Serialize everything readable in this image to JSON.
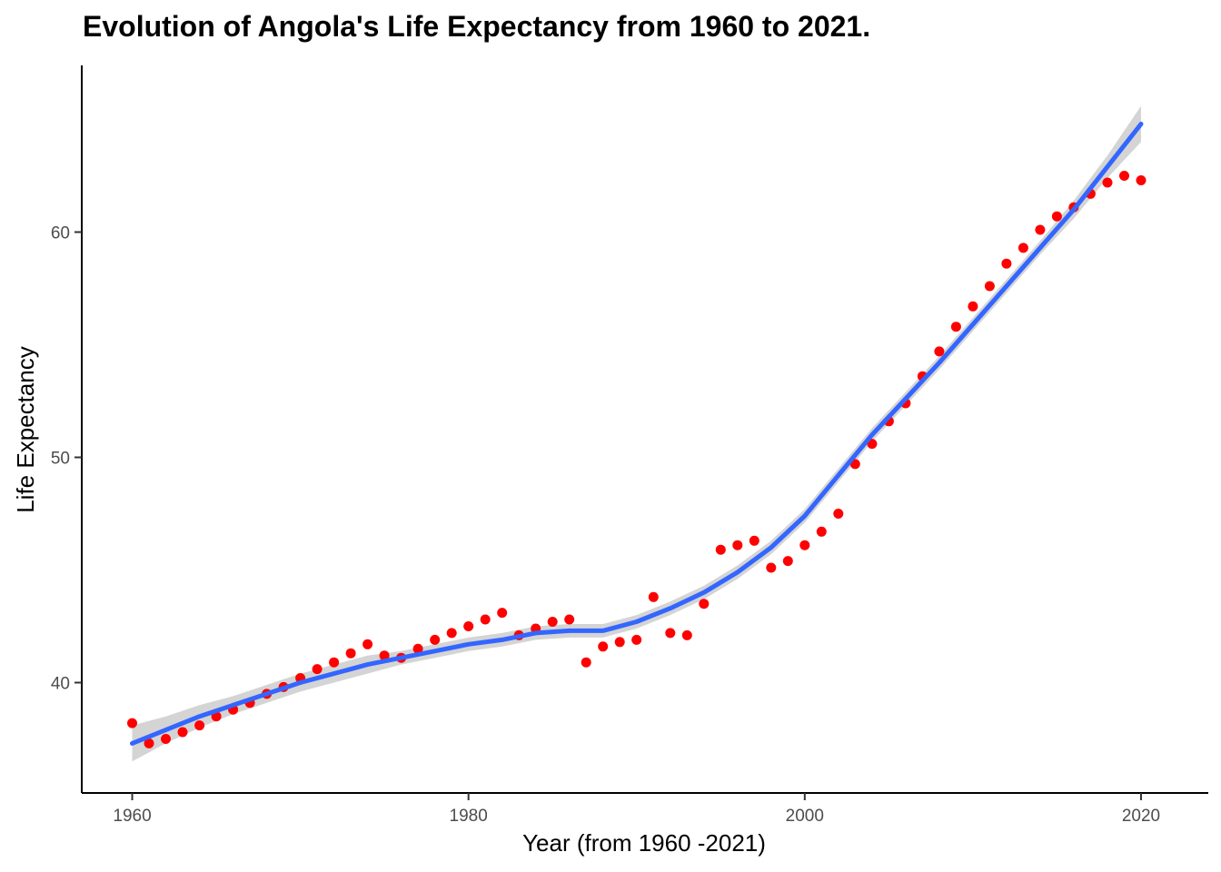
{
  "chart_data": {
    "type": "scatter",
    "title": "Evolution of Angola's Life Expectancy from 1960 to 2021.",
    "xlabel": "Year (from 1960 -2021)",
    "ylabel": "Life Expectancy",
    "xlim": [
      1957,
      2024
    ],
    "ylim": [
      35.1,
      67.4
    ],
    "x_ticks": [
      1960,
      1980,
      2000,
      2020
    ],
    "y_ticks": [
      40,
      50,
      60
    ],
    "grid": false,
    "colors": {
      "points": "#ff0000",
      "smooth": "#3366ff",
      "band": "#cccccc"
    },
    "points": {
      "x": [
        1960,
        1961,
        1962,
        1963,
        1964,
        1965,
        1966,
        1967,
        1968,
        1969,
        1970,
        1971,
        1972,
        1973,
        1974,
        1975,
        1976,
        1977,
        1978,
        1979,
        1980,
        1981,
        1982,
        1983,
        1984,
        1985,
        1986,
        1987,
        1988,
        1989,
        1990,
        1991,
        1992,
        1993,
        1994,
        1995,
        1996,
        1997,
        1998,
        1999,
        2000,
        2001,
        2002,
        2003,
        2004,
        2005,
        2006,
        2007,
        2008,
        2009,
        2010,
        2011,
        2012,
        2013,
        2014,
        2015,
        2016,
        2017,
        2018,
        2019,
        2020
      ],
      "y": [
        38.2,
        37.3,
        37.5,
        37.8,
        38.1,
        38.5,
        38.8,
        39.1,
        39.5,
        39.8,
        40.2,
        40.6,
        40.9,
        41.3,
        41.7,
        41.2,
        41.1,
        41.5,
        41.9,
        42.2,
        42.5,
        42.8,
        43.1,
        42.1,
        42.4,
        42.7,
        42.8,
        40.9,
        41.6,
        41.8,
        41.9,
        43.8,
        42.2,
        42.1,
        43.5,
        45.9,
        46.1,
        46.3,
        45.1,
        45.4,
        46.1,
        46.7,
        47.5,
        49.7,
        50.6,
        51.6,
        52.4,
        53.6,
        54.7,
        55.8,
        56.7,
        57.6,
        58.6,
        59.3,
        60.1,
        60.7,
        61.1,
        61.7,
        62.2,
        62.5,
        62.3
      ]
    },
    "smooth": {
      "x": [
        1960,
        1962,
        1964,
        1966,
        1968,
        1970,
        1972,
        1974,
        1976,
        1978,
        1980,
        1982,
        1984,
        1986,
        1988,
        1990,
        1992,
        1994,
        1996,
        1998,
        2000,
        2002,
        2004,
        2006,
        2008,
        2010,
        2012,
        2014,
        2016,
        2018,
        2020
      ],
      "y": [
        37.3,
        37.9,
        38.5,
        39.0,
        39.5,
        40.0,
        40.4,
        40.8,
        41.1,
        41.4,
        41.7,
        41.9,
        42.2,
        42.3,
        42.3,
        42.7,
        43.3,
        44.0,
        44.9,
        46.0,
        47.4,
        49.2,
        51.0,
        52.6,
        54.2,
        55.9,
        57.6,
        59.3,
        61.0,
        62.9,
        64.8
      ],
      "lower": [
        36.5,
        37.3,
        38.0,
        38.6,
        39.1,
        39.6,
        40.0,
        40.4,
        40.8,
        41.1,
        41.4,
        41.6,
        41.9,
        42.0,
        42.0,
        42.4,
        43.0,
        43.7,
        44.6,
        45.7,
        47.1,
        48.9,
        50.7,
        52.3,
        53.9,
        55.6,
        57.3,
        59.0,
        60.6,
        62.4,
        64.0
      ],
      "upper": [
        38.1,
        38.5,
        39.0,
        39.4,
        39.9,
        40.4,
        40.8,
        41.2,
        41.4,
        41.7,
        42.0,
        42.2,
        42.5,
        42.6,
        42.6,
        43.0,
        43.6,
        44.3,
        45.2,
        46.3,
        47.7,
        49.5,
        51.3,
        52.9,
        54.5,
        56.2,
        57.9,
        59.6,
        61.4,
        63.4,
        65.6
      ]
    }
  }
}
